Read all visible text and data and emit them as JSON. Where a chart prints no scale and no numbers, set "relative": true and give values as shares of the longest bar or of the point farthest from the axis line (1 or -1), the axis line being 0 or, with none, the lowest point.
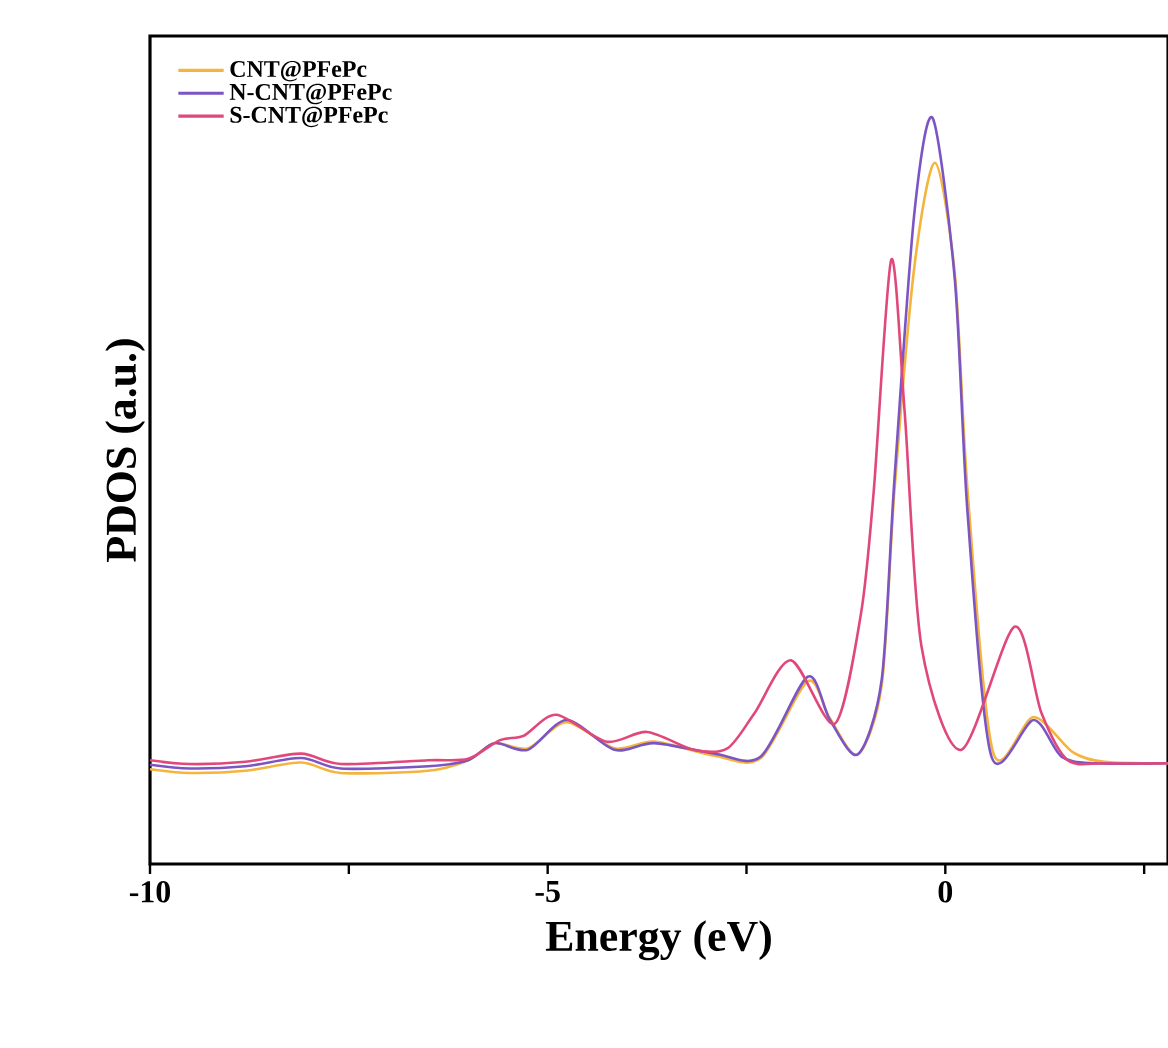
{
  "chart_data": {
    "type": "line",
    "relative": true,
    "xlabel": "Energy (eV)",
    "ylabel": "PDOS (a.u.)",
    "xlim": [
      -10,
      2.8
    ],
    "xticks": [
      -10,
      {
        "value": -7.5,
        "label": null
      },
      -5,
      {
        "value": -2.5,
        "label": null
      },
      0,
      {
        "value": 2.5,
        "label": null
      }
    ],
    "legend": "top left",
    "series": [
      {
        "name": "CNT@PFePc",
        "color": "#f5b43c",
        "x": [
          -10,
          -9.5,
          -8.8,
          -8.1,
          -7.6,
          -6.5,
          -6.0,
          -5.67,
          -5.25,
          -4.76,
          -4.16,
          -3.66,
          -2.9,
          -2.32,
          -1.73,
          -1.45,
          -1.1,
          -0.8,
          -0.64,
          -0.39,
          -0.13,
          0.12,
          0.28,
          0.6,
          1.11,
          1.6,
          2.0,
          2.8
        ],
        "values": [
          0.127,
          0.122,
          0.125,
          0.136,
          0.122,
          0.125,
          0.139,
          0.162,
          0.155,
          0.19,
          0.155,
          0.164,
          0.145,
          0.142,
          0.245,
          0.195,
          0.147,
          0.24,
          0.5,
          0.8,
          0.94,
          0.79,
          0.5,
          0.15,
          0.197,
          0.15,
          0.137,
          0.135
        ]
      },
      {
        "name": "N-CNT@PFePc",
        "color": "#7b55c4",
        "x": [
          -10,
          -9.5,
          -8.8,
          -8.1,
          -7.6,
          -6.5,
          -6.0,
          -5.67,
          -5.25,
          -4.76,
          -4.16,
          -3.66,
          -2.9,
          -2.32,
          -1.73,
          -1.45,
          -1.1,
          -0.8,
          -0.64,
          -0.39,
          -0.16,
          0.12,
          0.28,
          0.58,
          1.11,
          1.46,
          1.88,
          2.8
        ],
        "values": [
          0.133,
          0.128,
          0.131,
          0.142,
          0.128,
          0.131,
          0.139,
          0.162,
          0.153,
          0.193,
          0.153,
          0.162,
          0.148,
          0.144,
          0.251,
          0.193,
          0.147,
          0.247,
          0.515,
          0.872,
          1.0,
          0.783,
          0.47,
          0.144,
          0.193,
          0.144,
          0.135,
          0.135
        ]
      },
      {
        "name": "S-CNT@PFePc",
        "color": "#e0487a",
        "x": [
          -10,
          -9.5,
          -8.8,
          -8.1,
          -7.6,
          -6.5,
          -6.0,
          -5.6,
          -5.3,
          -4.89,
          -4.26,
          -3.75,
          -3.16,
          -2.74,
          -2.4,
          -1.94,
          -1.39,
          -1.06,
          -0.9,
          -0.68,
          -0.51,
          -0.3,
          0.2,
          0.87,
          1.21,
          1.54,
          2.0,
          2.8
        ],
        "values": [
          0.139,
          0.134,
          0.137,
          0.148,
          0.134,
          0.139,
          0.141,
          0.166,
          0.172,
          0.2,
          0.164,
          0.177,
          0.153,
          0.155,
          0.202,
          0.273,
          0.188,
          0.336,
          0.5,
          0.81,
          0.604,
          0.292,
          0.153,
          0.318,
          0.202,
          0.139,
          0.135,
          0.135
        ]
      }
    ]
  }
}
